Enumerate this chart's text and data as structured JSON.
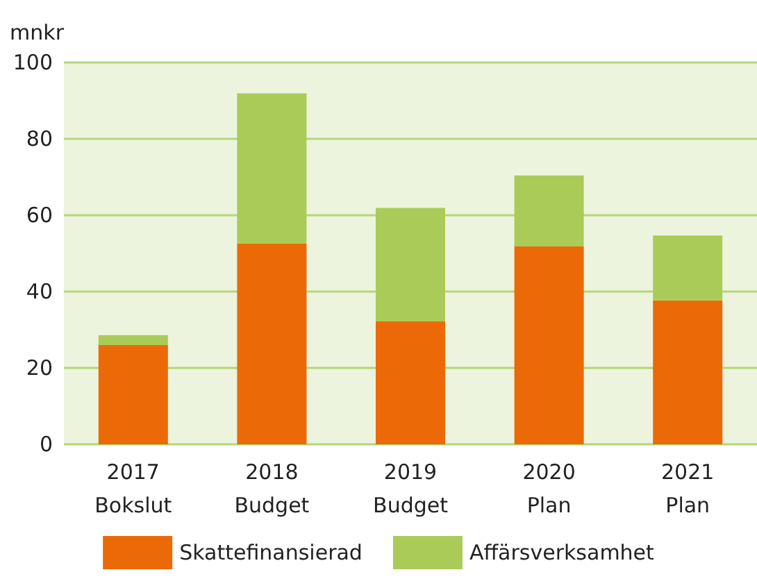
{
  "chart_data": {
    "type": "bar",
    "stacked": true,
    "ylabel": "mnkr",
    "categories": [
      "2017\nBokslut",
      "2018\nBudget",
      "2019\nBudget",
      "2020\nPlan",
      "2021\nPlan"
    ],
    "series": [
      {
        "name": "Skattefinansierad",
        "color": "#eb6a07",
        "values": [
          26.0,
          52.6,
          32.2,
          51.8,
          37.7
        ]
      },
      {
        "name": "Affärsverksamhet",
        "color": "#abcb58",
        "values": [
          2.6,
          39.3,
          29.7,
          18.6,
          17.0
        ]
      }
    ],
    "ylim": [
      0,
      100
    ],
    "yticks": [
      0,
      20,
      40,
      60,
      80,
      100
    ],
    "grid": "y",
    "legend": "bottom"
  }
}
